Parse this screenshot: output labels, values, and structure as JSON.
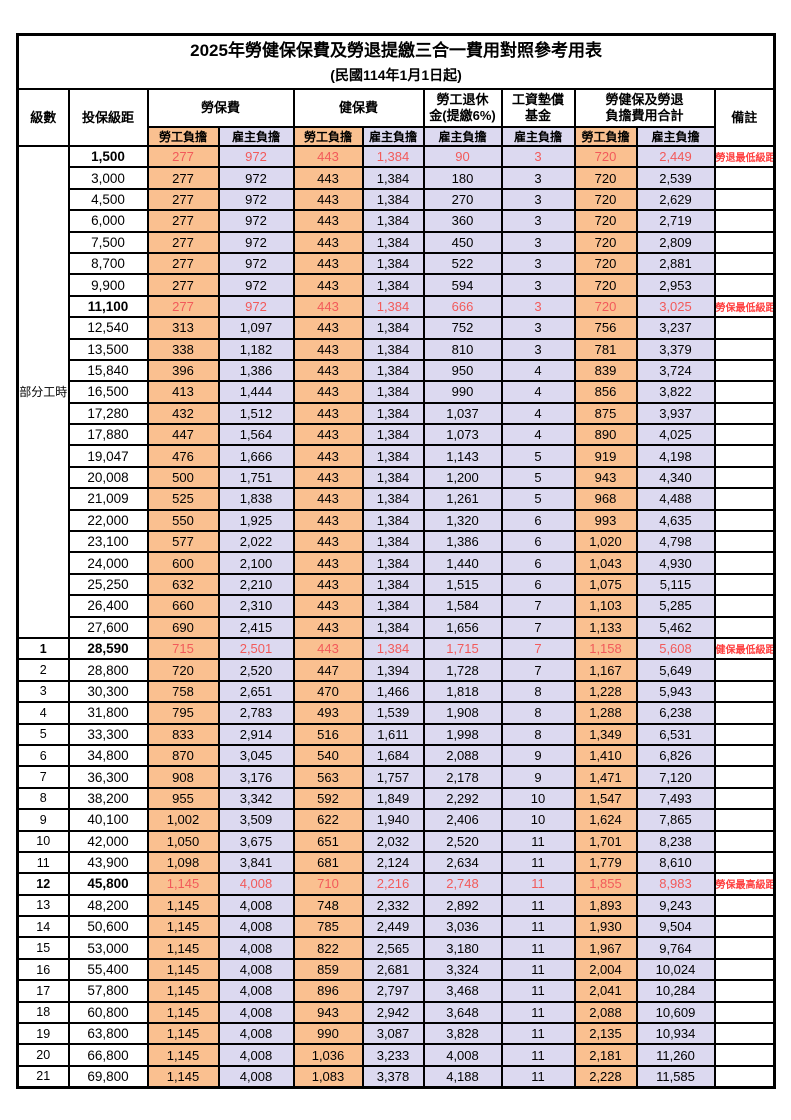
{
  "title": "2025年勞健保保費及勞退提繳三合一費用對照參考用表",
  "subtitle": "(民國114年1月1日起)",
  "columns": {
    "grade": "級數",
    "bracket": "投保級距",
    "labor_group": "勞保費",
    "health_group": "健保費",
    "pension_group_line1": "勞工退休",
    "pension_group_line2": "金(提繳6%)",
    "wage_fund_group_line1": "工資墊償",
    "wage_fund_group_line2": "基金",
    "total_group_line1": "勞健保及勞退",
    "total_group_line2": "負擔費用合計",
    "remark": "備註",
    "employee_share": "勞工負擔",
    "employer_share": "雇主負擔"
  },
  "part_time_label": "部分工時",
  "part_time_rowspan": 23,
  "colors": {
    "employee_bg": "#FAC090",
    "employer_bg": "#DCD9F0",
    "highlight_value_text": "#F25A5A",
    "remark_text": "#FF4040",
    "border": "#000000"
  },
  "rows": [
    {
      "grade": null,
      "bracket": "1,500",
      "values": [
        "277",
        "972",
        "443",
        "1,384",
        "90",
        "3",
        "720",
        "2,449"
      ],
      "remark": "勞退最低級距",
      "highlight": true
    },
    {
      "grade": null,
      "bracket": "3,000",
      "values": [
        "277",
        "972",
        "443",
        "1,384",
        "180",
        "3",
        "720",
        "2,539"
      ],
      "remark": "",
      "highlight": false
    },
    {
      "grade": null,
      "bracket": "4,500",
      "values": [
        "277",
        "972",
        "443",
        "1,384",
        "270",
        "3",
        "720",
        "2,629"
      ],
      "remark": "",
      "highlight": false
    },
    {
      "grade": null,
      "bracket": "6,000",
      "values": [
        "277",
        "972",
        "443",
        "1,384",
        "360",
        "3",
        "720",
        "2,719"
      ],
      "remark": "",
      "highlight": false
    },
    {
      "grade": null,
      "bracket": "7,500",
      "values": [
        "277",
        "972",
        "443",
        "1,384",
        "450",
        "3",
        "720",
        "2,809"
      ],
      "remark": "",
      "highlight": false
    },
    {
      "grade": null,
      "bracket": "8,700",
      "values": [
        "277",
        "972",
        "443",
        "1,384",
        "522",
        "3",
        "720",
        "2,881"
      ],
      "remark": "",
      "highlight": false
    },
    {
      "grade": null,
      "bracket": "9,900",
      "values": [
        "277",
        "972",
        "443",
        "1,384",
        "594",
        "3",
        "720",
        "2,953"
      ],
      "remark": "",
      "highlight": false
    },
    {
      "grade": null,
      "bracket": "11,100",
      "values": [
        "277",
        "972",
        "443",
        "1,384",
        "666",
        "3",
        "720",
        "3,025"
      ],
      "remark": "勞保最低級距",
      "highlight": true
    },
    {
      "grade": null,
      "bracket": "12,540",
      "values": [
        "313",
        "1,097",
        "443",
        "1,384",
        "752",
        "3",
        "756",
        "3,237"
      ],
      "remark": "",
      "highlight": false
    },
    {
      "grade": null,
      "bracket": "13,500",
      "values": [
        "338",
        "1,182",
        "443",
        "1,384",
        "810",
        "3",
        "781",
        "3,379"
      ],
      "remark": "",
      "highlight": false
    },
    {
      "grade": null,
      "bracket": "15,840",
      "values": [
        "396",
        "1,386",
        "443",
        "1,384",
        "950",
        "4",
        "839",
        "3,724"
      ],
      "remark": "",
      "highlight": false
    },
    {
      "grade": null,
      "bracket": "16,500",
      "values": [
        "413",
        "1,444",
        "443",
        "1,384",
        "990",
        "4",
        "856",
        "3,822"
      ],
      "remark": "",
      "highlight": false
    },
    {
      "grade": null,
      "bracket": "17,280",
      "values": [
        "432",
        "1,512",
        "443",
        "1,384",
        "1,037",
        "4",
        "875",
        "3,937"
      ],
      "remark": "",
      "highlight": false
    },
    {
      "grade": null,
      "bracket": "17,880",
      "values": [
        "447",
        "1,564",
        "443",
        "1,384",
        "1,073",
        "4",
        "890",
        "4,025"
      ],
      "remark": "",
      "highlight": false
    },
    {
      "grade": null,
      "bracket": "19,047",
      "values": [
        "476",
        "1,666",
        "443",
        "1,384",
        "1,143",
        "5",
        "919",
        "4,198"
      ],
      "remark": "",
      "highlight": false
    },
    {
      "grade": null,
      "bracket": "20,008",
      "values": [
        "500",
        "1,751",
        "443",
        "1,384",
        "1,200",
        "5",
        "943",
        "4,340"
      ],
      "remark": "",
      "highlight": false
    },
    {
      "grade": null,
      "bracket": "21,009",
      "values": [
        "525",
        "1,838",
        "443",
        "1,384",
        "1,261",
        "5",
        "968",
        "4,488"
      ],
      "remark": "",
      "highlight": false
    },
    {
      "grade": null,
      "bracket": "22,000",
      "values": [
        "550",
        "1,925",
        "443",
        "1,384",
        "1,320",
        "6",
        "993",
        "4,635"
      ],
      "remark": "",
      "highlight": false
    },
    {
      "grade": null,
      "bracket": "23,100",
      "values": [
        "577",
        "2,022",
        "443",
        "1,384",
        "1,386",
        "6",
        "1,020",
        "4,798"
      ],
      "remark": "",
      "highlight": false
    },
    {
      "grade": null,
      "bracket": "24,000",
      "values": [
        "600",
        "2,100",
        "443",
        "1,384",
        "1,440",
        "6",
        "1,043",
        "4,930"
      ],
      "remark": "",
      "highlight": false
    },
    {
      "grade": null,
      "bracket": "25,250",
      "values": [
        "632",
        "2,210",
        "443",
        "1,384",
        "1,515",
        "6",
        "1,075",
        "5,115"
      ],
      "remark": "",
      "highlight": false
    },
    {
      "grade": null,
      "bracket": "26,400",
      "values": [
        "660",
        "2,310",
        "443",
        "1,384",
        "1,584",
        "7",
        "1,103",
        "5,285"
      ],
      "remark": "",
      "highlight": false
    },
    {
      "grade": null,
      "bracket": "27,600",
      "values": [
        "690",
        "2,415",
        "443",
        "1,384",
        "1,656",
        "7",
        "1,133",
        "5,462"
      ],
      "remark": "",
      "highlight": false
    },
    {
      "grade": "1",
      "bracket": "28,590",
      "values": [
        "715",
        "2,501",
        "443",
        "1,384",
        "1,715",
        "7",
        "1,158",
        "5,608"
      ],
      "remark": "健保最低級距",
      "highlight": true
    },
    {
      "grade": "2",
      "bracket": "28,800",
      "values": [
        "720",
        "2,520",
        "447",
        "1,394",
        "1,728",
        "7",
        "1,167",
        "5,649"
      ],
      "remark": "",
      "highlight": false
    },
    {
      "grade": "3",
      "bracket": "30,300",
      "values": [
        "758",
        "2,651",
        "470",
        "1,466",
        "1,818",
        "8",
        "1,228",
        "5,943"
      ],
      "remark": "",
      "highlight": false
    },
    {
      "grade": "4",
      "bracket": "31,800",
      "values": [
        "795",
        "2,783",
        "493",
        "1,539",
        "1,908",
        "8",
        "1,288",
        "6,238"
      ],
      "remark": "",
      "highlight": false
    },
    {
      "grade": "5",
      "bracket": "33,300",
      "values": [
        "833",
        "2,914",
        "516",
        "1,611",
        "1,998",
        "8",
        "1,349",
        "6,531"
      ],
      "remark": "",
      "highlight": false
    },
    {
      "grade": "6",
      "bracket": "34,800",
      "values": [
        "870",
        "3,045",
        "540",
        "1,684",
        "2,088",
        "9",
        "1,410",
        "6,826"
      ],
      "remark": "",
      "highlight": false
    },
    {
      "grade": "7",
      "bracket": "36,300",
      "values": [
        "908",
        "3,176",
        "563",
        "1,757",
        "2,178",
        "9",
        "1,471",
        "7,120"
      ],
      "remark": "",
      "highlight": false
    },
    {
      "grade": "8",
      "bracket": "38,200",
      "values": [
        "955",
        "3,342",
        "592",
        "1,849",
        "2,292",
        "10",
        "1,547",
        "7,493"
      ],
      "remark": "",
      "highlight": false
    },
    {
      "grade": "9",
      "bracket": "40,100",
      "values": [
        "1,002",
        "3,509",
        "622",
        "1,940",
        "2,406",
        "10",
        "1,624",
        "7,865"
      ],
      "remark": "",
      "highlight": false
    },
    {
      "grade": "10",
      "bracket": "42,000",
      "values": [
        "1,050",
        "3,675",
        "651",
        "2,032",
        "2,520",
        "11",
        "1,701",
        "8,238"
      ],
      "remark": "",
      "highlight": false
    },
    {
      "grade": "11",
      "bracket": "43,900",
      "values": [
        "1,098",
        "3,841",
        "681",
        "2,124",
        "2,634",
        "11",
        "1,779",
        "8,610"
      ],
      "remark": "",
      "highlight": false
    },
    {
      "grade": "12",
      "bracket": "45,800",
      "values": [
        "1,145",
        "4,008",
        "710",
        "2,216",
        "2,748",
        "11",
        "1,855",
        "8,983"
      ],
      "remark": "勞保最高級距",
      "highlight": true
    },
    {
      "grade": "13",
      "bracket": "48,200",
      "values": [
        "1,145",
        "4,008",
        "748",
        "2,332",
        "2,892",
        "11",
        "1,893",
        "9,243"
      ],
      "remark": "",
      "highlight": false
    },
    {
      "grade": "14",
      "bracket": "50,600",
      "values": [
        "1,145",
        "4,008",
        "785",
        "2,449",
        "3,036",
        "11",
        "1,930",
        "9,504"
      ],
      "remark": "",
      "highlight": false
    },
    {
      "grade": "15",
      "bracket": "53,000",
      "values": [
        "1,145",
        "4,008",
        "822",
        "2,565",
        "3,180",
        "11",
        "1,967",
        "9,764"
      ],
      "remark": "",
      "highlight": false
    },
    {
      "grade": "16",
      "bracket": "55,400",
      "values": [
        "1,145",
        "4,008",
        "859",
        "2,681",
        "3,324",
        "11",
        "2,004",
        "10,024"
      ],
      "remark": "",
      "highlight": false
    },
    {
      "grade": "17",
      "bracket": "57,800",
      "values": [
        "1,145",
        "4,008",
        "896",
        "2,797",
        "3,468",
        "11",
        "2,041",
        "10,284"
      ],
      "remark": "",
      "highlight": false
    },
    {
      "grade": "18",
      "bracket": "60,800",
      "values": [
        "1,145",
        "4,008",
        "943",
        "2,942",
        "3,648",
        "11",
        "2,088",
        "10,609"
      ],
      "remark": "",
      "highlight": false
    },
    {
      "grade": "19",
      "bracket": "63,800",
      "values": [
        "1,145",
        "4,008",
        "990",
        "3,087",
        "3,828",
        "11",
        "2,135",
        "10,934"
      ],
      "remark": "",
      "highlight": false
    },
    {
      "grade": "20",
      "bracket": "66,800",
      "values": [
        "1,145",
        "4,008",
        "1,036",
        "3,233",
        "4,008",
        "11",
        "2,181",
        "11,260"
      ],
      "remark": "",
      "highlight": false
    },
    {
      "grade": "21",
      "bracket": "69,800",
      "values": [
        "1,145",
        "4,008",
        "1,083",
        "3,378",
        "4,188",
        "11",
        "2,228",
        "11,585"
      ],
      "remark": "",
      "highlight": false
    }
  ]
}
